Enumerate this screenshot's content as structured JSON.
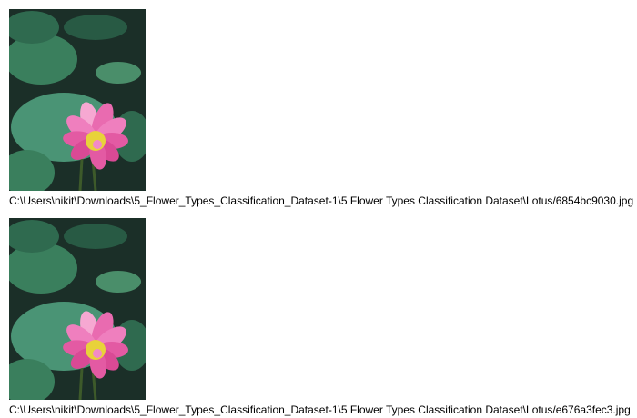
{
  "images": [
    {
      "subject": "lotus-flower",
      "caption": "C:\\Users\\nikit\\Downloads\\5_Flower_Types_Classification_Dataset-1\\5 Flower Types Classification Dataset\\Lotus/6854bc9030.jpg"
    },
    {
      "subject": "lotus-flower",
      "caption": "C:\\Users\\nikit\\Downloads\\5_Flower_Types_Classification_Dataset-1\\5 Flower Types Classification Dataset\\Lotus/e676a3fec3.jpg"
    }
  ],
  "colors": {
    "background": "#ffffff",
    "leaf_dark": "#1f4a3a",
    "leaf_light": "#3f8a6a",
    "petal": "#e96bb0",
    "petal_light": "#f6a8d2",
    "center": "#e8d23a"
  }
}
